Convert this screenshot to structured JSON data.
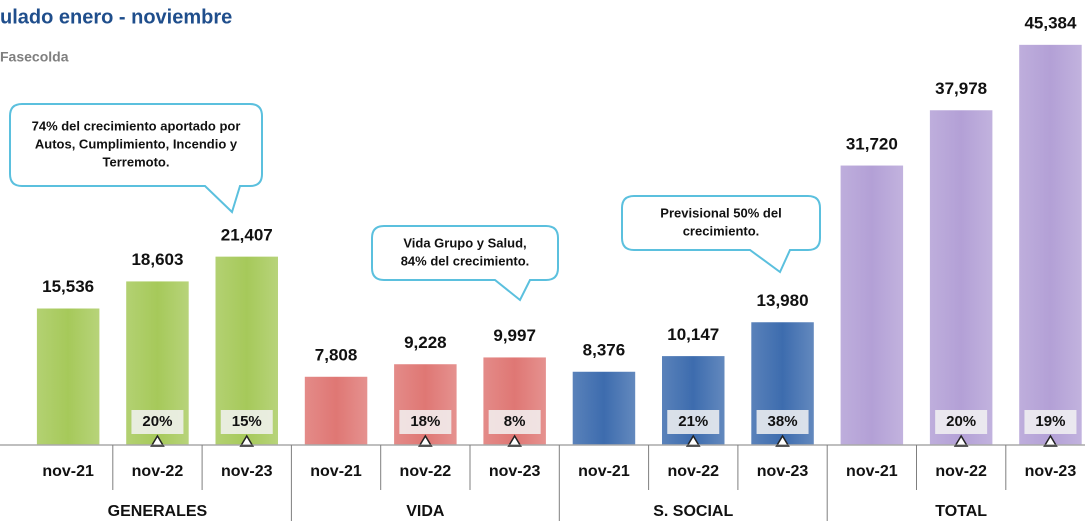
{
  "chart_data": {
    "type": "bar",
    "title": "ulado enero - noviembre",
    "subtitle": "Fasecolda",
    "categories": [
      "nov-21",
      "nov-22",
      "nov-23"
    ],
    "ylim": [
      0,
      46300
    ],
    "series": [
      {
        "name": "GENERALES",
        "color": "#a6c95a",
        "values": [
          15536,
          18603,
          21407
        ],
        "value_labels": [
          "15,536",
          "18,603",
          "21,407"
        ],
        "growth": [
          null,
          20,
          15
        ],
        "growth_labels": [
          null,
          "20%",
          "15%"
        ]
      },
      {
        "name": "VIDA",
        "color": "#df7774",
        "values": [
          7808,
          9228,
          9997
        ],
        "value_labels": [
          "7,808",
          "9,228",
          "9,997"
        ],
        "growth": [
          null,
          18,
          8
        ],
        "growth_labels": [
          null,
          "18%",
          "8%"
        ]
      },
      {
        "name": "S. SOCIAL",
        "color": "#3d6cae",
        "values": [
          8376,
          10147,
          13980
        ],
        "value_labels": [
          "8,376",
          "10,147",
          "13,980"
        ],
        "growth": [
          null,
          21,
          38
        ],
        "growth_labels": [
          null,
          "21%",
          "38%"
        ]
      },
      {
        "name": "TOTAL",
        "color": "#b3a0d6",
        "values": [
          31720,
          37978,
          45384
        ],
        "value_labels": [
          "31,720",
          "37,978",
          "45,384"
        ],
        "growth": [
          null,
          20,
          19
        ],
        "growth_labels": [
          null,
          "20%",
          "19%"
        ]
      }
    ],
    "annotations": [
      {
        "lines": [
          "74% del crecimiento aportado por",
          "Autos, Cumplimiento, Incendio y",
          "Terremoto."
        ]
      },
      {
        "lines": [
          "Vida Grupo y Salud,",
          "84% del crecimiento."
        ]
      },
      {
        "lines": [
          "Previsional  50% del",
          "crecimiento."
        ]
      }
    ]
  }
}
